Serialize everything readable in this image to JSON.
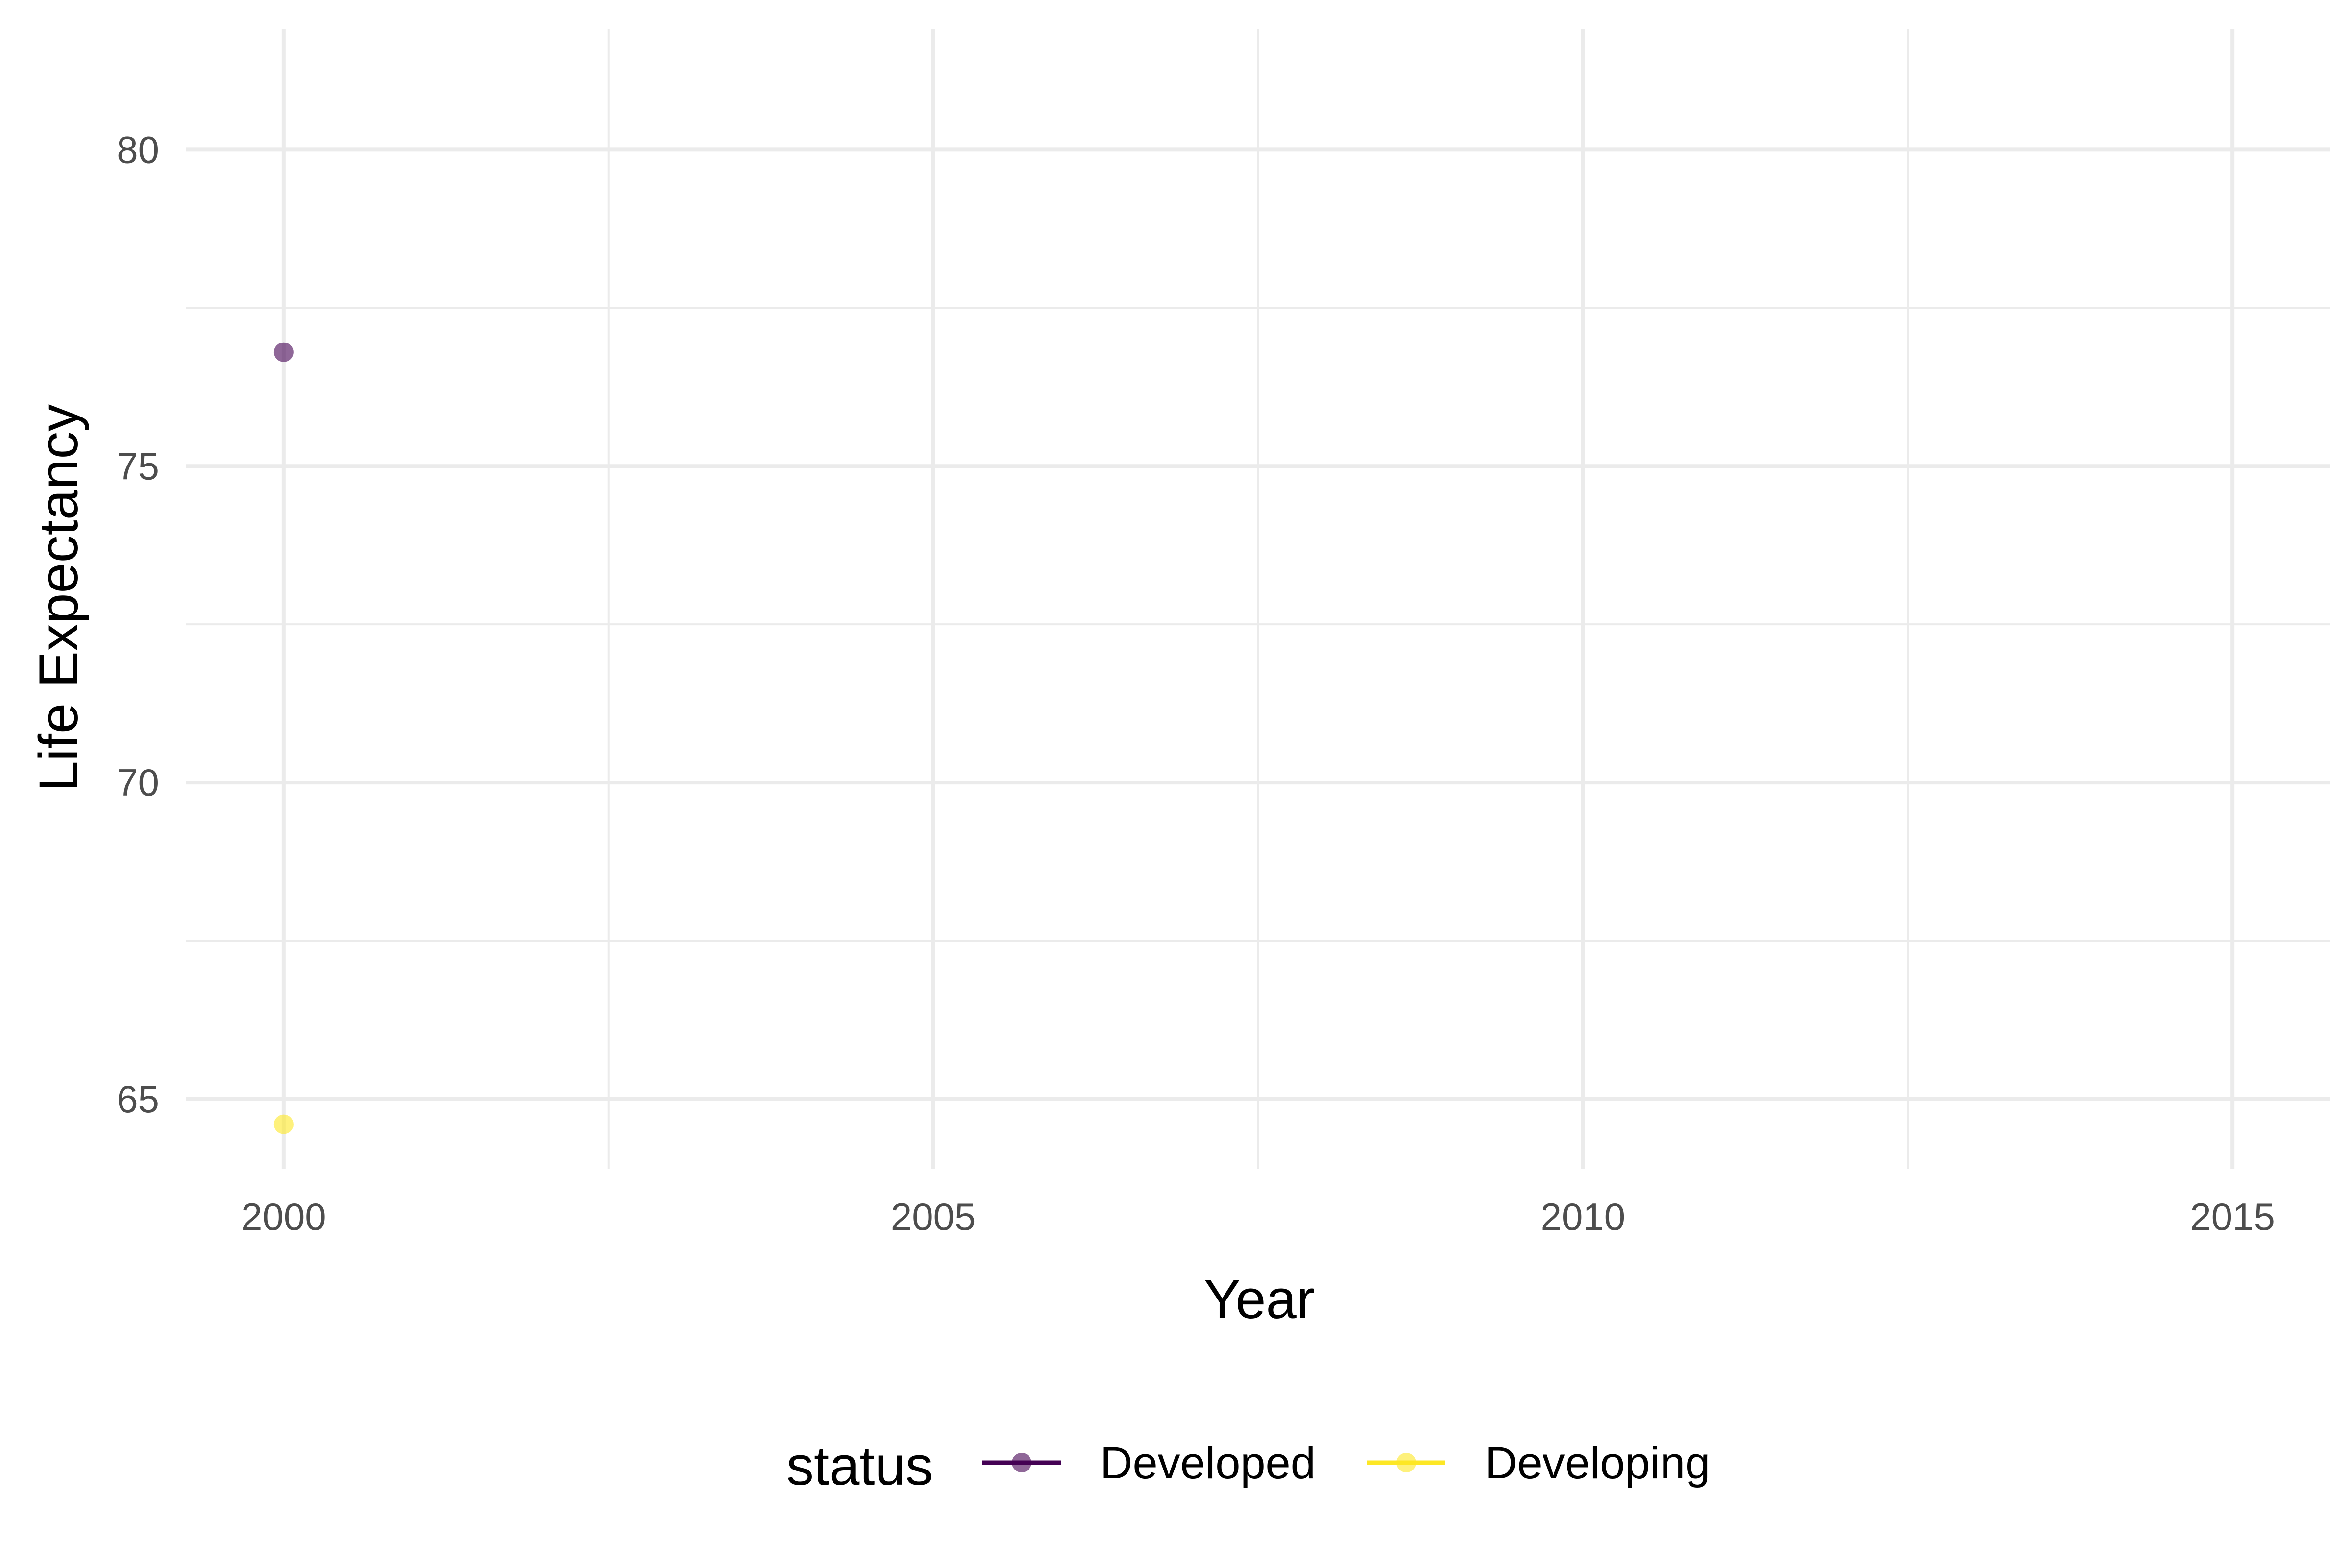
{
  "chart_data": {
    "type": "scatter",
    "title": "",
    "xlabel": "Year",
    "ylabel": "Life Expectancy",
    "xlim": [
      1999.25,
      2015.75
    ],
    "ylim": [
      63.9,
      81.9
    ],
    "x_ticks": [
      2000,
      2005,
      2010,
      2015
    ],
    "x_minor_ticks": [
      2002.5,
      2007.5,
      2012.5
    ],
    "y_ticks": [
      65,
      70,
      75,
      80
    ],
    "y_minor_ticks": [
      67.5,
      72.5,
      77.5
    ],
    "grid": true,
    "legend": {
      "title": "status",
      "position": "bottom"
    },
    "series": [
      {
        "name": "Developed",
        "color": "#440154",
        "points": [
          {
            "x": 2000,
            "y": 76.8
          }
        ]
      },
      {
        "name": "Developing",
        "color": "#FDE725",
        "points": [
          {
            "x": 2000,
            "y": 64.6
          }
        ]
      }
    ]
  }
}
